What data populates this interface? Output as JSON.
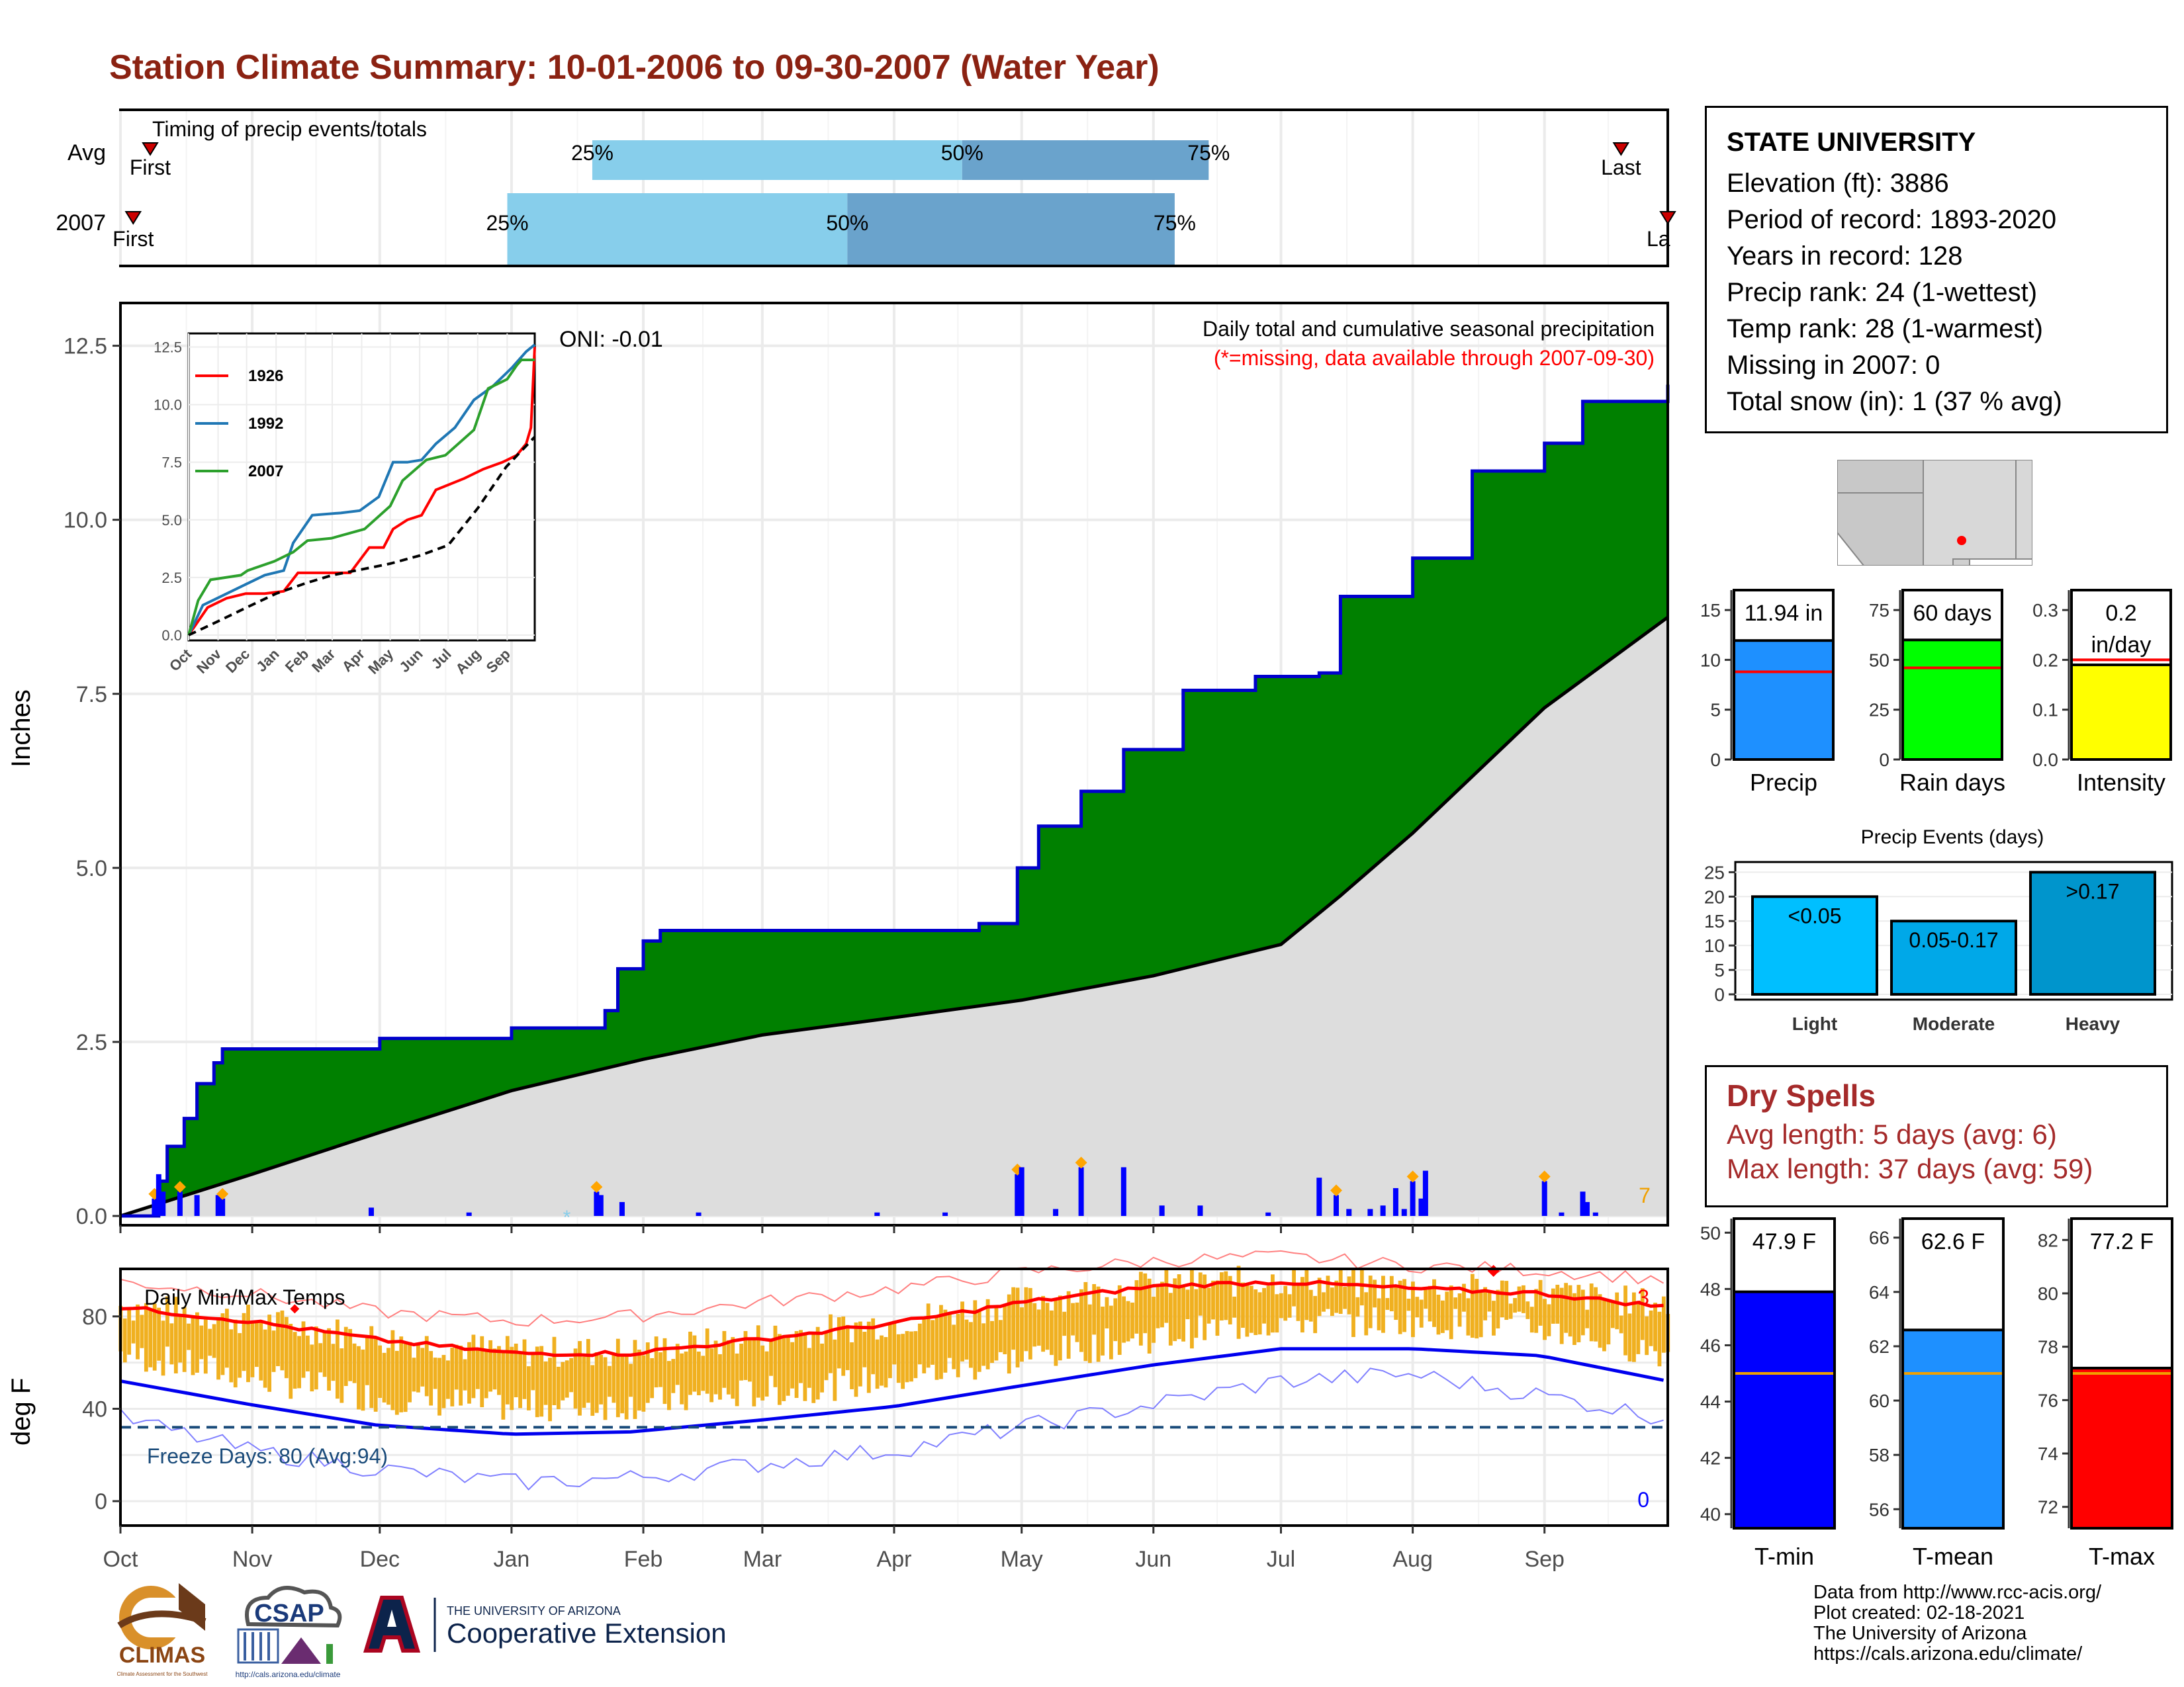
{
  "title": "Station Climate Summary: 10-01-2006 to 09-30-2007 (Water Year)",
  "months": [
    "Oct",
    "Nov",
    "Dec",
    "Jan",
    "Feb",
    "Mar",
    "Apr",
    "May",
    "Jun",
    "Jul",
    "Aug",
    "Sep"
  ],
  "timing": {
    "title": "Timing of precip events/totals",
    "rows": [
      {
        "label": "Avg",
        "first_label": "First",
        "last_label": "Last",
        "q25": "25%",
        "q50": "50%",
        "q75": "75%"
      },
      {
        "label": "2007",
        "first_label": "First",
        "last_label": "La",
        "q25": "25%",
        "q50": "50%",
        "q75": "75%"
      }
    ]
  },
  "precip_panel": {
    "ylabel": "Inches",
    "yticks": [
      "0.0",
      "2.5",
      "5.0",
      "7.5",
      "10.0",
      "12.5"
    ],
    "title": "Daily total and cumulative seasonal precipitation",
    "missing_note": "(*=missing, data available through 2007-09-30)",
    "oni": "ONI: -0.01",
    "count_label": "7"
  },
  "inset": {
    "yticks": [
      "0.0",
      "2.5",
      "5.0",
      "7.5",
      "10.0",
      "12.5"
    ],
    "months": [
      "Oct",
      "Nov",
      "Dec",
      "Jan",
      "Feb",
      "Mar",
      "Apr",
      "May",
      "Jun",
      "Jul",
      "Aug",
      "Sep"
    ],
    "legend": [
      "1926",
      "1992",
      "2007"
    ]
  },
  "temp_panel": {
    "ylabel": "deg F",
    "yticks": [
      "0",
      "40",
      "80"
    ],
    "title": "Daily Min/Max Temps",
    "freeze_label": "Freeze Days: 80 (Avg:94)",
    "max_count": "3",
    "min_count": "0"
  },
  "info": {
    "station": "STATE UNIVERSITY",
    "lines": [
      "Elevation (ft): 3886",
      "Period of record: 1893-2020",
      "Years in record: 128",
      "Precip rank: 24 (1-wettest)",
      "Temp rank: 28 (1-warmest)",
      "Missing in 2007: 0",
      "Total snow (in): 1 (37 % avg)"
    ]
  },
  "mini_bars": {
    "precip": {
      "label": "Precip",
      "value_text": "11.94 in",
      "yticks": [
        "0",
        "5",
        "10",
        "15"
      ]
    },
    "rain_days": {
      "label": "Rain days",
      "value_text": "60 days",
      "yticks": [
        "0",
        "25",
        "50",
        "75"
      ]
    },
    "intensity": {
      "label": "Intensity",
      "value_text_1": "0.2",
      "value_text_2": "in/day",
      "yticks": [
        "0.0",
        "0.1",
        "0.2",
        "0.3"
      ]
    }
  },
  "events": {
    "title": "Precip Events (days)",
    "yticks": [
      "0",
      "5",
      "10",
      "15",
      "20",
      "25"
    ],
    "categories": [
      "Light",
      "Moderate",
      "Heavy"
    ],
    "bar_labels": [
      "<0.05",
      "0.05-0.17",
      ">0.17"
    ]
  },
  "dry_spells": {
    "title": "Dry Spells",
    "avg": "Avg length: 5 days (avg: 6)",
    "max": "Max length: 37 days (avg: 59)"
  },
  "temp_bars": {
    "tmin": {
      "label": "T-min",
      "value_text": "47.9 F",
      "yticks": [
        "40",
        "42",
        "44",
        "46",
        "48",
        "50"
      ]
    },
    "tmean": {
      "label": "T-mean",
      "value_text": "62.6 F",
      "yticks": [
        "56",
        "58",
        "60",
        "62",
        "64",
        "66"
      ]
    },
    "tmax": {
      "label": "T-max",
      "value_text": "77.2 F",
      "yticks": [
        "72",
        "74",
        "76",
        "78",
        "80",
        "82"
      ]
    }
  },
  "logos": {
    "climas": "CLIMAS",
    "csap": "CSAP",
    "ua_top": "THE UNIVERSITY OF ARIZONA",
    "ua_main": "Cooperative Extension",
    "climas_sub": "Climate Assessment for the Southwest",
    "csap_url": "http://cals.arizona.edu/climate"
  },
  "footer": [
    "Data from http://www.rcc-acis.org/",
    "Plot created: 02-18-2021",
    "The University of Arizona",
    "https://cals.arizona.edu/climate/"
  ],
  "colors": {
    "title": "#8b2212",
    "green": "#008000",
    "grey": "#dddddd",
    "blue": "#0000ff",
    "skyblue": "#87ceeb",
    "steel": "#6aa3cc",
    "orange": "#f0b020",
    "red": "#ff0000",
    "dodger": "#1e90ff",
    "lime": "#00ff00",
    "yellow": "#ffff00",
    "dryred": "#a52a2a"
  },
  "chart_data": [
    {
      "id": "timing",
      "type": "bar",
      "categories": [
        "Avg",
        "2007"
      ],
      "series": [
        {
          "name": "25%",
          "values": [
            "2007-01-20",
            "2006-12-31"
          ]
        },
        {
          "name": "50%",
          "values": [
            "2007-04-17",
            "2007-03-21"
          ]
        },
        {
          "name": "75%",
          "values": [
            "2007-06-14",
            "2007-06-06"
          ]
        }
      ],
      "first": [
        "2006-10-08",
        "2006-10-04"
      ],
      "last": [
        "2007-09-19",
        "2007-09-30"
      ]
    },
    {
      "id": "cumulative_precip",
      "type": "area",
      "ylabel": "Inches",
      "ylim": [
        0,
        13
      ],
      "series": [
        {
          "name": "2007 cumulative",
          "x": [
            "2006-10-01",
            "2006-10-10",
            "2006-10-12",
            "2006-10-16",
            "2006-10-19",
            "2006-10-23",
            "2006-10-25",
            "2006-12-01",
            "2007-01-01",
            "2007-01-23",
            "2007-01-26",
            "2007-02-01",
            "2007-02-05",
            "2007-04-21",
            "2007-04-30",
            "2007-05-05",
            "2007-05-15",
            "2007-05-25",
            "2007-06-08",
            "2007-06-25",
            "2007-07-10",
            "2007-07-15",
            "2007-08-01",
            "2007-08-15",
            "2007-09-01",
            "2007-09-10",
            "2007-09-30"
          ],
          "y": [
            0.0,
            0.5,
            1.0,
            1.4,
            1.9,
            2.2,
            2.4,
            2.55,
            2.7,
            2.95,
            3.55,
            3.95,
            4.1,
            4.2,
            5.0,
            5.6,
            6.1,
            6.7,
            7.55,
            7.75,
            7.8,
            8.9,
            9.45,
            10.7,
            11.1,
            11.7,
            11.94
          ]
        },
        {
          "name": "Avg cumulative",
          "x": [
            "2006-10-01",
            "2006-11-01",
            "2006-12-01",
            "2007-01-01",
            "2007-02-01",
            "2007-03-01",
            "2007-04-01",
            "2007-05-01",
            "2007-06-01",
            "2007-07-01",
            "2007-07-15",
            "2007-08-01",
            "2007-09-01",
            "2007-09-30"
          ],
          "y": [
            0.0,
            0.6,
            1.2,
            1.8,
            2.25,
            2.6,
            2.85,
            3.1,
            3.45,
            3.9,
            4.6,
            5.5,
            7.3,
            8.6
          ]
        }
      ],
      "daily_precip": [
        {
          "x": "2006-10-09",
          "y": 0.25
        },
        {
          "x": "2006-10-10",
          "y": 0.6
        },
        {
          "x": "2006-10-11",
          "y": 0.35
        },
        {
          "x": "2006-10-15",
          "y": 0.35
        },
        {
          "x": "2006-10-19",
          "y": 0.3
        },
        {
          "x": "2006-10-24",
          "y": 0.3
        },
        {
          "x": "2006-10-25",
          "y": 0.25
        },
        {
          "x": "2006-11-29",
          "y": 0.12
        },
        {
          "x": "2006-12-22",
          "y": 0.05
        },
        {
          "x": "2007-01-21",
          "y": 0.35
        },
        {
          "x": "2007-01-22",
          "y": 0.3
        },
        {
          "x": "2007-01-27",
          "y": 0.2
        },
        {
          "x": "2007-02-14",
          "y": 0.05
        },
        {
          "x": "2007-03-28",
          "y": 0.05
        },
        {
          "x": "2007-04-13",
          "y": 0.05
        },
        {
          "x": "2007-04-30",
          "y": 0.6
        },
        {
          "x": "2007-05-01",
          "y": 0.7
        },
        {
          "x": "2007-05-09",
          "y": 0.1
        },
        {
          "x": "2007-05-15",
          "y": 0.7
        },
        {
          "x": "2007-05-25",
          "y": 0.7
        },
        {
          "x": "2007-06-03",
          "y": 0.15
        },
        {
          "x": "2007-06-12",
          "y": 0.15
        },
        {
          "x": "2007-06-28",
          "y": 0.05
        },
        {
          "x": "2007-07-10",
          "y": 0.55
        },
        {
          "x": "2007-07-14",
          "y": 0.3
        },
        {
          "x": "2007-07-17",
          "y": 0.1
        },
        {
          "x": "2007-07-22",
          "y": 0.1
        },
        {
          "x": "2007-07-25",
          "y": 0.15
        },
        {
          "x": "2007-07-28",
          "y": 0.4
        },
        {
          "x": "2007-07-30",
          "y": 0.1
        },
        {
          "x": "2007-08-01",
          "y": 0.5
        },
        {
          "x": "2007-08-03",
          "y": 0.25
        },
        {
          "x": "2007-08-04",
          "y": 0.65
        },
        {
          "x": "2007-09-01",
          "y": 0.5
        },
        {
          "x": "2007-09-05",
          "y": 0.05
        },
        {
          "x": "2007-09-10",
          "y": 0.35
        },
        {
          "x": "2007-09-11",
          "y": 0.2
        },
        {
          "x": "2007-09-13",
          "y": 0.05
        }
      ]
    },
    {
      "id": "inset_cumulative",
      "type": "line",
      "ylim": [
        0,
        12.8
      ],
      "series": [
        {
          "name": "1926",
          "x": [
            0,
            20,
            40,
            60,
            80,
            100,
            115,
            140,
            170,
            190,
            205,
            215,
            230,
            245,
            260,
            290,
            310,
            330,
            345,
            355,
            360,
            364
          ],
          "y": [
            0,
            1.2,
            1.6,
            1.8,
            1.8,
            1.9,
            2.7,
            2.7,
            2.7,
            3.8,
            3.8,
            4.6,
            5.0,
            5.2,
            6.3,
            6.8,
            7.2,
            7.5,
            7.8,
            8.3,
            9.0,
            12.5
          ]
        },
        {
          "name": "1992",
          "x": [
            0,
            15,
            40,
            60,
            80,
            100,
            110,
            130,
            160,
            180,
            200,
            215,
            230,
            245,
            260,
            280,
            300,
            320,
            340,
            355,
            364
          ],
          "y": [
            0,
            1.3,
            1.8,
            2.2,
            2.6,
            2.8,
            4.0,
            5.2,
            5.3,
            5.4,
            6.0,
            7.5,
            7.5,
            7.6,
            8.3,
            9.0,
            10.2,
            10.8,
            11.6,
            12.3,
            12.6
          ]
        },
        {
          "name": "2007",
          "x": [
            0,
            10,
            23,
            55,
            62,
            90,
            110,
            125,
            150,
            185,
            212,
            225,
            250,
            270,
            300,
            315,
            335,
            345,
            350,
            364
          ],
          "y": [
            0,
            1.5,
            2.4,
            2.6,
            2.8,
            3.2,
            3.6,
            4.1,
            4.2,
            4.6,
            5.6,
            6.7,
            7.6,
            7.8,
            8.9,
            10.7,
            11.1,
            11.7,
            11.94,
            11.94
          ]
        },
        {
          "name": "Avg",
          "x": [
            0,
            31,
            61,
            92,
            123,
            151,
            182,
            212,
            243,
            273,
            304,
            334,
            364
          ],
          "y": [
            0,
            0.6,
            1.2,
            1.8,
            2.25,
            2.6,
            2.85,
            3.1,
            3.45,
            3.9,
            5.5,
            7.3,
            8.6
          ]
        }
      ]
    },
    {
      "id": "daily_temps",
      "type": "line",
      "ylabel": "deg F",
      "ylim": [
        -10,
        100
      ],
      "series": [
        {
          "name": "Avg max",
          "x": [
            0,
            30,
            60,
            92,
            120,
            150,
            182,
            212,
            243,
            273,
            304,
            334,
            364
          ],
          "y": [
            84,
            78,
            70,
            64,
            64,
            70,
            77,
            86,
            93,
            95,
            92,
            90,
            84
          ]
        },
        {
          "name": "Avg min",
          "x": [
            0,
            30,
            60,
            92,
            120,
            150,
            182,
            212,
            243,
            273,
            304,
            334,
            364
          ],
          "y": [
            52,
            42,
            33,
            29,
            30,
            35,
            41,
            50,
            59,
            66,
            66,
            63,
            52
          ]
        },
        {
          "name": "Record max",
          "x": [
            0,
            30,
            60,
            92,
            120,
            150,
            182,
            212,
            243,
            273,
            304,
            334,
            364
          ],
          "y": [
            95,
            90,
            82,
            78,
            80,
            86,
            92,
            99,
            104,
            106,
            102,
            100,
            96
          ]
        },
        {
          "name": "Record min",
          "x": [
            0,
            30,
            60,
            92,
            120,
            150,
            182,
            212,
            243,
            273,
            304,
            334,
            364
          ],
          "y": [
            36,
            22,
            14,
            8,
            10,
            16,
            22,
            32,
            42,
            52,
            55,
            46,
            36
          ]
        }
      ],
      "freeze_line": 32
    },
    {
      "id": "precip_total",
      "type": "bar",
      "categories": [
        "Precip"
      ],
      "values": [
        11.94
      ],
      "average": 8.8,
      "ylim": [
        0,
        17
      ]
    },
    {
      "id": "rain_days",
      "type": "bar",
      "categories": [
        "Rain days"
      ],
      "values": [
        60
      ],
      "average": 46,
      "ylim": [
        0,
        85
      ]
    },
    {
      "id": "intensity",
      "type": "bar",
      "categories": [
        "Intensity"
      ],
      "values": [
        0.19
      ],
      "average": 0.2,
      "ylim": [
        0,
        0.34
      ]
    },
    {
      "id": "precip_events",
      "type": "bar",
      "categories": [
        "Light",
        "Moderate",
        "Heavy"
      ],
      "values": [
        20,
        15,
        25
      ],
      "ylim": [
        0,
        26
      ]
    },
    {
      "id": "tmin",
      "type": "bar",
      "categories": [
        "T-min"
      ],
      "values": [
        47.9
      ],
      "average": 45.0,
      "ylim": [
        39.5,
        50.5
      ]
    },
    {
      "id": "tmean",
      "type": "bar",
      "categories": [
        "T-mean"
      ],
      "values": [
        62.6
      ],
      "average": 61.0,
      "ylim": [
        55.3,
        66.7
      ]
    },
    {
      "id": "tmax",
      "type": "bar",
      "categories": [
        "T-max"
      ],
      "values": [
        77.2
      ],
      "average": 77.0,
      "ylim": [
        71.2,
        82.8
      ]
    }
  ]
}
